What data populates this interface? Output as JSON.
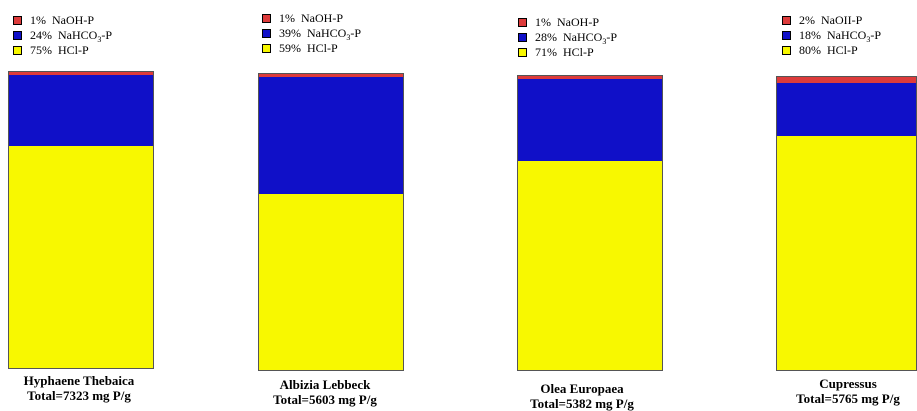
{
  "colors": {
    "naoh": "#dd3b3b",
    "nahco3": "#1010c8",
    "hcl": "#f8f800"
  },
  "chart_data": {
    "type": "bar",
    "stacked": true,
    "normalized_percent": true,
    "series_keys": [
      "naoh",
      "nahco3",
      "hcl"
    ],
    "series_labels": {
      "naoh": {
        "text": "NaOH-P"
      },
      "nahco3": {
        "pre": "NaHCO",
        "sub": "3",
        "post": "-P"
      },
      "hcl": {
        "text": "HCl-P"
      }
    },
    "panels": [
      {
        "name": "Hyphaene Thebaica",
        "total": "Total=7323 mg P/g",
        "values": {
          "naoh": 1,
          "nahco3": 24,
          "hcl": 75
        },
        "naoh_label": "NaOH-P"
      },
      {
        "name": "Albizia Lebbeck",
        "total": "Total=5603 mg P/g",
        "values": {
          "naoh": 1,
          "nahco3": 39,
          "hcl": 59
        },
        "naoh_label": "NaOH-P"
      },
      {
        "name": "Olea Europaea",
        "total": "Total=5382 mg P/g",
        "values": {
          "naoh": 1,
          "nahco3": 28,
          "hcl": 71
        },
        "naoh_label": "NaOH-P"
      },
      {
        "name": "Cupressus",
        "total": "Total=5765 mg P/g",
        "values": {
          "naoh": 2,
          "nahco3": 18,
          "hcl": 80
        },
        "naoh_label": "NaOII-P"
      }
    ]
  }
}
